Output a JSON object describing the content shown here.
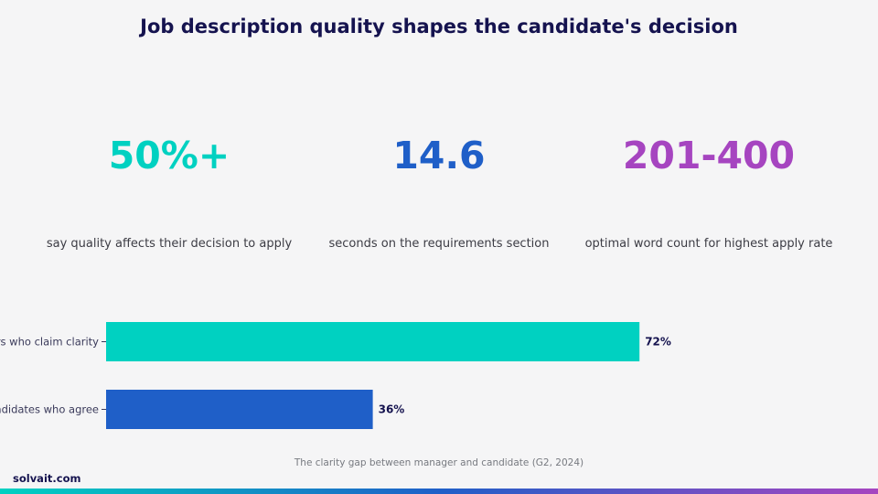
{
  "title": "Job description quality shapes the candidate's decision",
  "stats": [
    {
      "value": "50%+",
      "label": "say quality affects their decision to apply",
      "color": "#00d1c1"
    },
    {
      "value": "14.6",
      "label": "seconds on the requirements section",
      "color": "#1f5fc8"
    },
    {
      "value": "201-400",
      "label": "optimal word count for highest apply rate",
      "color": "#a645c0"
    }
  ],
  "chart_data": {
    "type": "bar",
    "orientation": "horizontal",
    "categories": [
      "Managers who claim clarity",
      "Candidates who agree"
    ],
    "values": [
      72,
      36
    ],
    "data_labels": [
      "72%",
      "36%"
    ],
    "colors": [
      "#00d1c1",
      "#1f5fc8"
    ],
    "xlim": [
      0,
      100
    ],
    "caption": "The clarity gap between manager and candidate (G2, 2024)"
  },
  "footer": {
    "brand": "solvait.com"
  }
}
